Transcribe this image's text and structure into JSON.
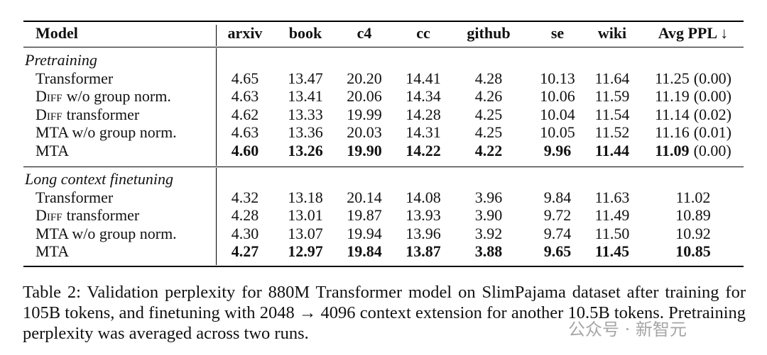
{
  "table": {
    "columns": [
      "Model",
      "arxiv",
      "book",
      "c4",
      "cc",
      "github",
      "se",
      "wiki",
      "Avg PPL ↓"
    ],
    "sections": [
      {
        "title": "Pretraining",
        "rows": [
          {
            "model": {
              "text": "Transformer"
            },
            "values": [
              "4.65",
              "13.47",
              "20.20",
              "14.41",
              "4.28",
              "10.13",
              "11.64"
            ],
            "avg": "11.25",
            "std": "(0.00)"
          },
          {
            "model": {
              "smallcaps": "Diff",
              "text": "w/o group norm."
            },
            "values": [
              "4.63",
              "13.41",
              "20.06",
              "14.34",
              "4.26",
              "10.06",
              "11.59"
            ],
            "avg": "11.19",
            "std": "(0.00)"
          },
          {
            "model": {
              "smallcaps": "Diff",
              "text": "transformer"
            },
            "values": [
              "4.62",
              "13.33",
              "19.99",
              "14.28",
              "4.25",
              "10.04",
              "11.54"
            ],
            "avg": "11.14",
            "std": "(0.02)"
          },
          {
            "model": {
              "text": "MTA w/o group norm."
            },
            "values": [
              "4.63",
              "13.36",
              "20.03",
              "14.31",
              "4.25",
              "10.05",
              "11.52"
            ],
            "avg": "11.16",
            "std": "(0.01)"
          },
          {
            "model": {
              "text": "MTA"
            },
            "values": [
              "4.60",
              "13.26",
              "19.90",
              "14.22",
              "4.22",
              "9.96",
              "11.44"
            ],
            "avg": "11.09",
            "std": "(0.00)",
            "bold": true
          }
        ]
      },
      {
        "title": "Long context finetuning",
        "rows": [
          {
            "model": {
              "text": "Transformer"
            },
            "values": [
              "4.32",
              "13.18",
              "20.14",
              "14.08",
              "3.96",
              "9.84",
              "11.63"
            ],
            "avg": "11.02"
          },
          {
            "model": {
              "smallcaps": "Diff",
              "text": "transformer"
            },
            "values": [
              "4.28",
              "13.01",
              "19.87",
              "13.93",
              "3.90",
              "9.72",
              "11.49"
            ],
            "avg": "10.89"
          },
          {
            "model": {
              "text": "MTA w/o group norm."
            },
            "values": [
              "4.30",
              "13.07",
              "19.94",
              "13.96",
              "3.92",
              "9.74",
              "11.50"
            ],
            "avg": "10.92"
          },
          {
            "model": {
              "text": "MTA"
            },
            "values": [
              "4.27",
              "12.97",
              "19.84",
              "13.87",
              "3.88",
              "9.65",
              "11.45"
            ],
            "avg": "10.85",
            "bold": true
          }
        ]
      }
    ]
  },
  "caption": "Table 2: Validation perplexity for 880M Transformer model on SlimPajama dataset after training for 105B tokens, and finetuning with 2048 → 4096 context extension for another 10.5B tokens. Pretraining perplexity was averaged across two runs.",
  "watermark": "公众号 · 新智元"
}
